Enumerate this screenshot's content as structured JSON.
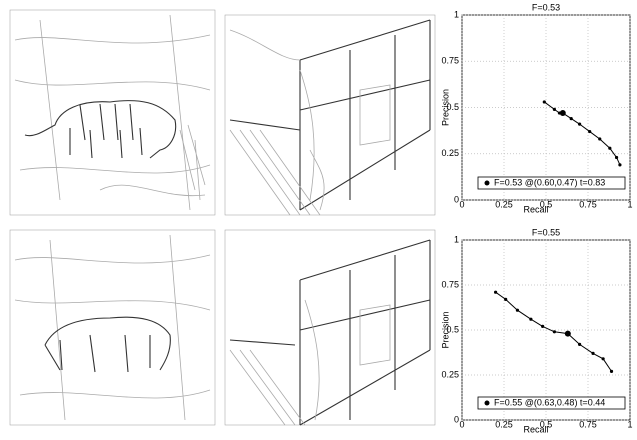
{
  "chart_data": [
    {
      "type": "line",
      "title": "F=0.53",
      "x_label": "Recall",
      "y_label": "Precision",
      "xlim": [
        0,
        1
      ],
      "ylim": [
        0,
        1
      ],
      "xticks": [
        0,
        0.25,
        0.5,
        0.75,
        1
      ],
      "yticks": [
        0,
        0.25,
        0.5,
        0.75,
        1
      ],
      "grid": true,
      "series": [
        {
          "name": "F=0.53 @(0.60,0.47) t=0.83",
          "color": "#000000",
          "x": [
            0.49,
            0.55,
            0.58,
            0.6,
            0.65,
            0.7,
            0.76,
            0.82,
            0.88,
            0.92,
            0.94
          ],
          "values": [
            0.53,
            0.49,
            0.47,
            0.47,
            0.44,
            0.41,
            0.37,
            0.33,
            0.28,
            0.23,
            0.19
          ]
        }
      ],
      "best_point": {
        "x": 0.6,
        "y": 0.47
      }
    },
    {
      "type": "line",
      "title": "F=0.55",
      "x_label": "Recall",
      "y_label": "Precision",
      "xlim": [
        0,
        1
      ],
      "ylim": [
        0,
        1
      ],
      "xticks": [
        0,
        0.25,
        0.5,
        0.75,
        1
      ],
      "yticks": [
        0,
        0.25,
        0.5,
        0.75,
        1
      ],
      "grid": true,
      "series": [
        {
          "name": "F=0.55 @(0.63,0.48) t=0.44",
          "color": "#000000",
          "x": [
            0.2,
            0.26,
            0.33,
            0.41,
            0.48,
            0.55,
            0.63,
            0.7,
            0.78,
            0.84,
            0.89
          ],
          "values": [
            0.71,
            0.67,
            0.61,
            0.56,
            0.52,
            0.49,
            0.48,
            0.42,
            0.37,
            0.34,
            0.27
          ]
        }
      ],
      "best_point": {
        "x": 0.63,
        "y": 0.48
      }
    }
  ]
}
